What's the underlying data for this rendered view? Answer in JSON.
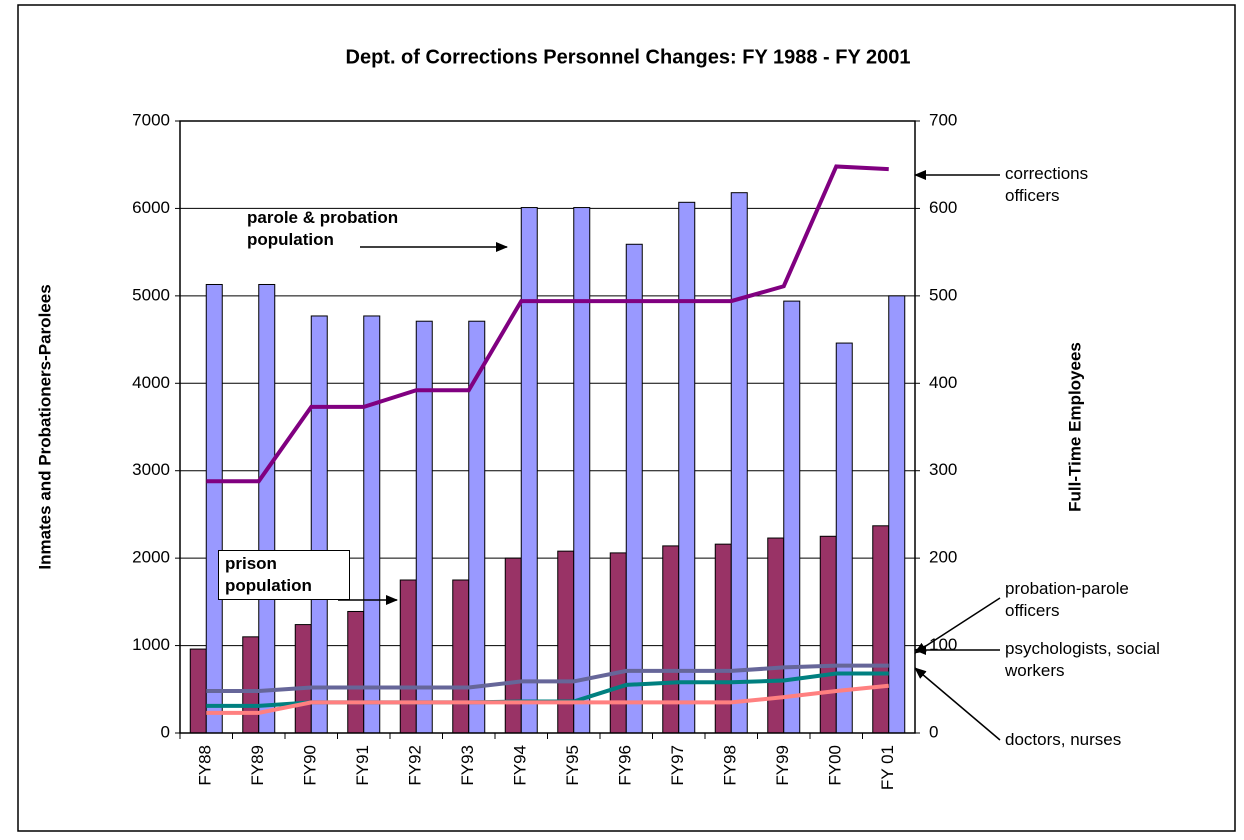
{
  "chart_data": {
    "type": "bar",
    "title": "Dept. of Corrections Personnel Changes:  FY 1988 - FY 2001",
    "ylabel": "Inmates and Probationers-Parolees",
    "y2label": "Full-Time Employees",
    "categories": [
      "FY88",
      "FY89",
      "FY90",
      "FY91",
      "FY92",
      "FY93",
      "FY94",
      "FY95",
      "FY96",
      "FY97",
      "FY98",
      "FY99",
      "FY00",
      "FY 01"
    ],
    "ylim": [
      0,
      7000
    ],
    "yticks": [
      0,
      1000,
      2000,
      3000,
      4000,
      5000,
      6000,
      7000
    ],
    "y2lim": [
      0,
      700
    ],
    "y2ticks": [
      0,
      100,
      200,
      300,
      400,
      500,
      600,
      700
    ],
    "grid": true,
    "series": [
      {
        "name": "prison population",
        "type": "bar",
        "color": "#993366",
        "values": [
          960,
          1100,
          1240,
          1390,
          1750,
          1750,
          2000,
          2080,
          2060,
          2140,
          2160,
          2230,
          2250,
          2370
        ]
      },
      {
        "name": "parole & probation population",
        "type": "bar",
        "color": "#9999ff",
        "values": [
          5130,
          5130,
          4770,
          4770,
          4710,
          4710,
          6010,
          6010,
          5590,
          6070,
          6180,
          4940,
          4460,
          5000
        ]
      },
      {
        "name": "corrections officers",
        "type": "line",
        "axis": "y2",
        "color": "#800080",
        "values": [
          288,
          288,
          373,
          373,
          392,
          392,
          494,
          494,
          494,
          494,
          494,
          511,
          648,
          645
        ]
      },
      {
        "name": "probation-parole officers",
        "type": "line",
        "axis": "y2",
        "color": "#666699",
        "values": [
          48,
          48,
          52,
          52,
          52,
          52,
          59,
          59,
          71,
          71,
          71,
          75,
          77,
          77
        ]
      },
      {
        "name": "psychologists, social workers",
        "type": "line",
        "axis": "y2",
        "color": "#008080",
        "values": [
          31,
          31,
          35,
          35,
          35,
          35,
          36,
          36,
          55,
          58,
          58,
          60,
          68,
          68
        ]
      },
      {
        "name": "doctors, nurses",
        "type": "line",
        "axis": "y2",
        "color": "#ff8080",
        "values": [
          23,
          23,
          35,
          35,
          35,
          35,
          35,
          35,
          35,
          35,
          35,
          41,
          48,
          54
        ]
      }
    ]
  }
}
